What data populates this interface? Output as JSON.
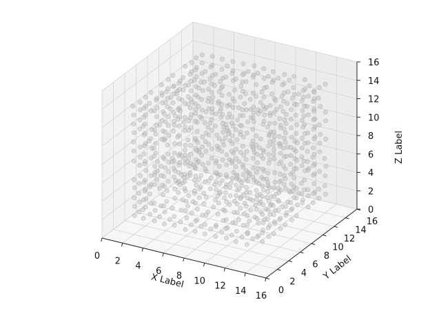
{
  "chart_data": {
    "type": "scatter3d",
    "title": "",
    "xlabel": "X Label",
    "ylabel": "Y Label",
    "zlabel": "Z Label",
    "xlim": [
      0,
      16
    ],
    "ylim": [
      0,
      16
    ],
    "zlim": [
      0,
      16
    ],
    "xticks": [
      "0",
      "2",
      "4",
      "6",
      "8",
      "10",
      "12",
      "14",
      "16"
    ],
    "yticks": [
      "0",
      "2",
      "4",
      "6",
      "8",
      "10",
      "12",
      "14",
      "16"
    ],
    "zticks": [
      "0",
      "2",
      "4",
      "6",
      "8",
      "10",
      "12",
      "14",
      "16"
    ],
    "grid": true,
    "marker_color": "#bdbdbd",
    "marker_edge_color": "#8f8f8f",
    "marker_alpha": 0.45,
    "points_description": "Points fill the hollow shell of the cube from 2 to 14 on each axis, plus a central plane near y≈8 and random interior samples",
    "shell_range": [
      2,
      14
    ],
    "step": 1
  }
}
